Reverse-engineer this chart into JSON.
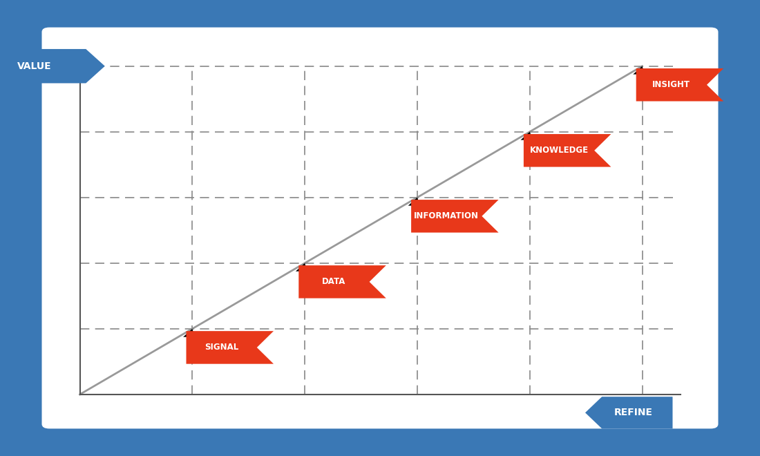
{
  "background_outer": "#3a78b5",
  "background_inner": "#ffffff",
  "card_color": "#ffffff",
  "diagonal_color": "#999999",
  "dashed_line_color": "#888888",
  "axis_color": "#555555",
  "label_bg_color": "#e8381a",
  "label_text_color": "#ffffff",
  "axis_label_bg": "#3a78b5",
  "axis_label_text": "#ffffff",
  "labels": [
    "SIGNAL",
    "DATA",
    "INFORMATION",
    "KNOWLEDGE",
    "INSIGHT"
  ],
  "x_axis_label": "REFINE",
  "y_axis_label": "VALUE",
  "figsize": [
    11.0,
    6.6
  ],
  "dpi": 100
}
